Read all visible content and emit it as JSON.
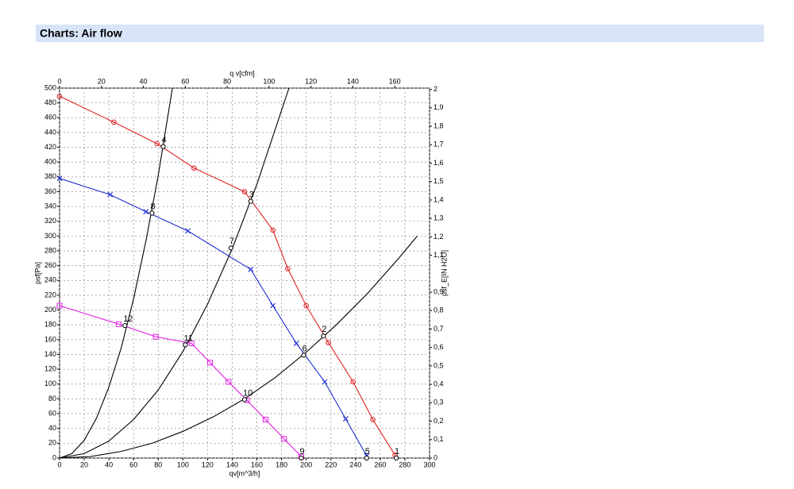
{
  "header": {
    "title": "Charts: Air flow"
  },
  "chart_data": {
    "type": "line",
    "xlabel": "qv[m^3/h]",
    "ylabel": "psf[Pa]",
    "x2label": "q v[cfm]",
    "y2label": "psf_E[IN H2O]",
    "xlim": [
      0,
      300
    ],
    "xticks": [
      0,
      20,
      40,
      60,
      80,
      100,
      120,
      140,
      160,
      180,
      200,
      220,
      240,
      260,
      280,
      300
    ],
    "ylim": [
      0,
      500
    ],
    "yticks": [
      0,
      20,
      40,
      60,
      80,
      100,
      120,
      140,
      160,
      180,
      200,
      220,
      240,
      260,
      280,
      300,
      320,
      340,
      360,
      380,
      400,
      420,
      440,
      460,
      480,
      500
    ],
    "x2lim": [
      0,
      176.6
    ],
    "x2ticks": [
      0,
      20,
      40,
      60,
      80,
      100,
      120,
      140,
      160
    ],
    "y2lim": [
      0,
      2.007
    ],
    "y2ticks": [
      0,
      {
        "value": 0.1,
        "label": "0,1"
      },
      {
        "value": 0.2,
        "label": "0,2"
      },
      {
        "value": 0.3,
        "label": "0,3"
      },
      {
        "value": 0.4,
        "label": "0,4"
      },
      {
        "value": 0.5,
        "label": "0,5"
      },
      {
        "value": 0.6,
        "label": "0,6"
      },
      {
        "value": 0.7,
        "label": "0,7"
      },
      {
        "value": 0.8,
        "label": "0,8"
      },
      {
        "value": 0.9,
        "label": "0,9"
      },
      {
        "value": 1.1,
        "label": "1,1"
      },
      {
        "value": 1.2,
        "label": "1,2"
      },
      {
        "value": 1.3,
        "label": "1,3"
      },
      {
        "value": 1.4,
        "label": "1,4"
      },
      {
        "value": 1.5,
        "label": "1,5"
      },
      {
        "value": 1.6,
        "label": "1,6"
      },
      {
        "value": 1.7,
        "label": "1,7"
      },
      {
        "value": 1.8,
        "label": "1,8"
      },
      {
        "value": 1.9,
        "label": "1,9"
      },
      2
    ],
    "grid": true,
    "series": [
      {
        "color": "#e02020",
        "marker": "circle",
        "x": [
          0,
          44,
          79,
          109,
          150,
          173,
          185,
          200,
          218,
          238,
          254,
          272
        ],
        "values": [
          489,
          454,
          425,
          392,
          360,
          308,
          256,
          206,
          156,
          103,
          52,
          4
        ]
      },
      {
        "color": "#1f2fd0",
        "marker": "x",
        "x": [
          0,
          41,
          70,
          104,
          155,
          173,
          192,
          215,
          232,
          249
        ],
        "values": [
          378,
          356,
          333,
          307,
          255,
          206,
          155,
          103,
          53,
          3
        ]
      },
      {
        "color": "#e020e0",
        "marker": "square",
        "x": [
          0,
          48,
          78,
          107,
          122,
          137,
          152,
          167,
          182,
          196
        ],
        "values": [
          206,
          181,
          164,
          155,
          129,
          103,
          78,
          52,
          26,
          2
        ]
      },
      {
        "color": "#000000",
        "marker": "none",
        "x": [
          0,
          10,
          20,
          30,
          40,
          50,
          60,
          70,
          80,
          91.5
        ],
        "values": [
          0,
          6,
          24,
          54,
          96,
          149,
          215,
          293,
          382,
          500
        ]
      },
      {
        "color": "#000000",
        "marker": "none",
        "x": [
          0,
          20,
          40,
          60,
          80,
          100,
          120,
          140,
          160,
          186
        ],
        "values": [
          0,
          6,
          23,
          52,
          92,
          144,
          208,
          283,
          370,
          500
        ]
      },
      {
        "color": "#000000",
        "marker": "none",
        "x": [
          0,
          25,
          50,
          75,
          100,
          125,
          150,
          175,
          200,
          225,
          250,
          275,
          290
        ],
        "values": [
          0,
          2,
          9,
          20,
          36,
          56,
          80,
          109,
          143,
          181,
          223,
          270,
          300
        ]
      }
    ],
    "points": [
      {
        "label": "1",
        "x": 273,
        "y": 0
      },
      {
        "label": "2",
        "x": 214,
        "y": 165
      },
      {
        "label": "3",
        "x": 155,
        "y": 347
      },
      {
        "label": "4",
        "x": 84,
        "y": 421
      },
      {
        "label": "5",
        "x": 249,
        "y": 0
      },
      {
        "label": "6",
        "x": 198,
        "y": 139
      },
      {
        "label": "7",
        "x": 139,
        "y": 284
      },
      {
        "label": "8",
        "x": 75,
        "y": 331
      },
      {
        "label": "9",
        "x": 196,
        "y": 0
      },
      {
        "label": "10",
        "x": 150,
        "y": 79
      },
      {
        "label": "11",
        "x": 102,
        "y": 153
      },
      {
        "label": "12",
        "x": 53,
        "y": 179
      }
    ]
  }
}
